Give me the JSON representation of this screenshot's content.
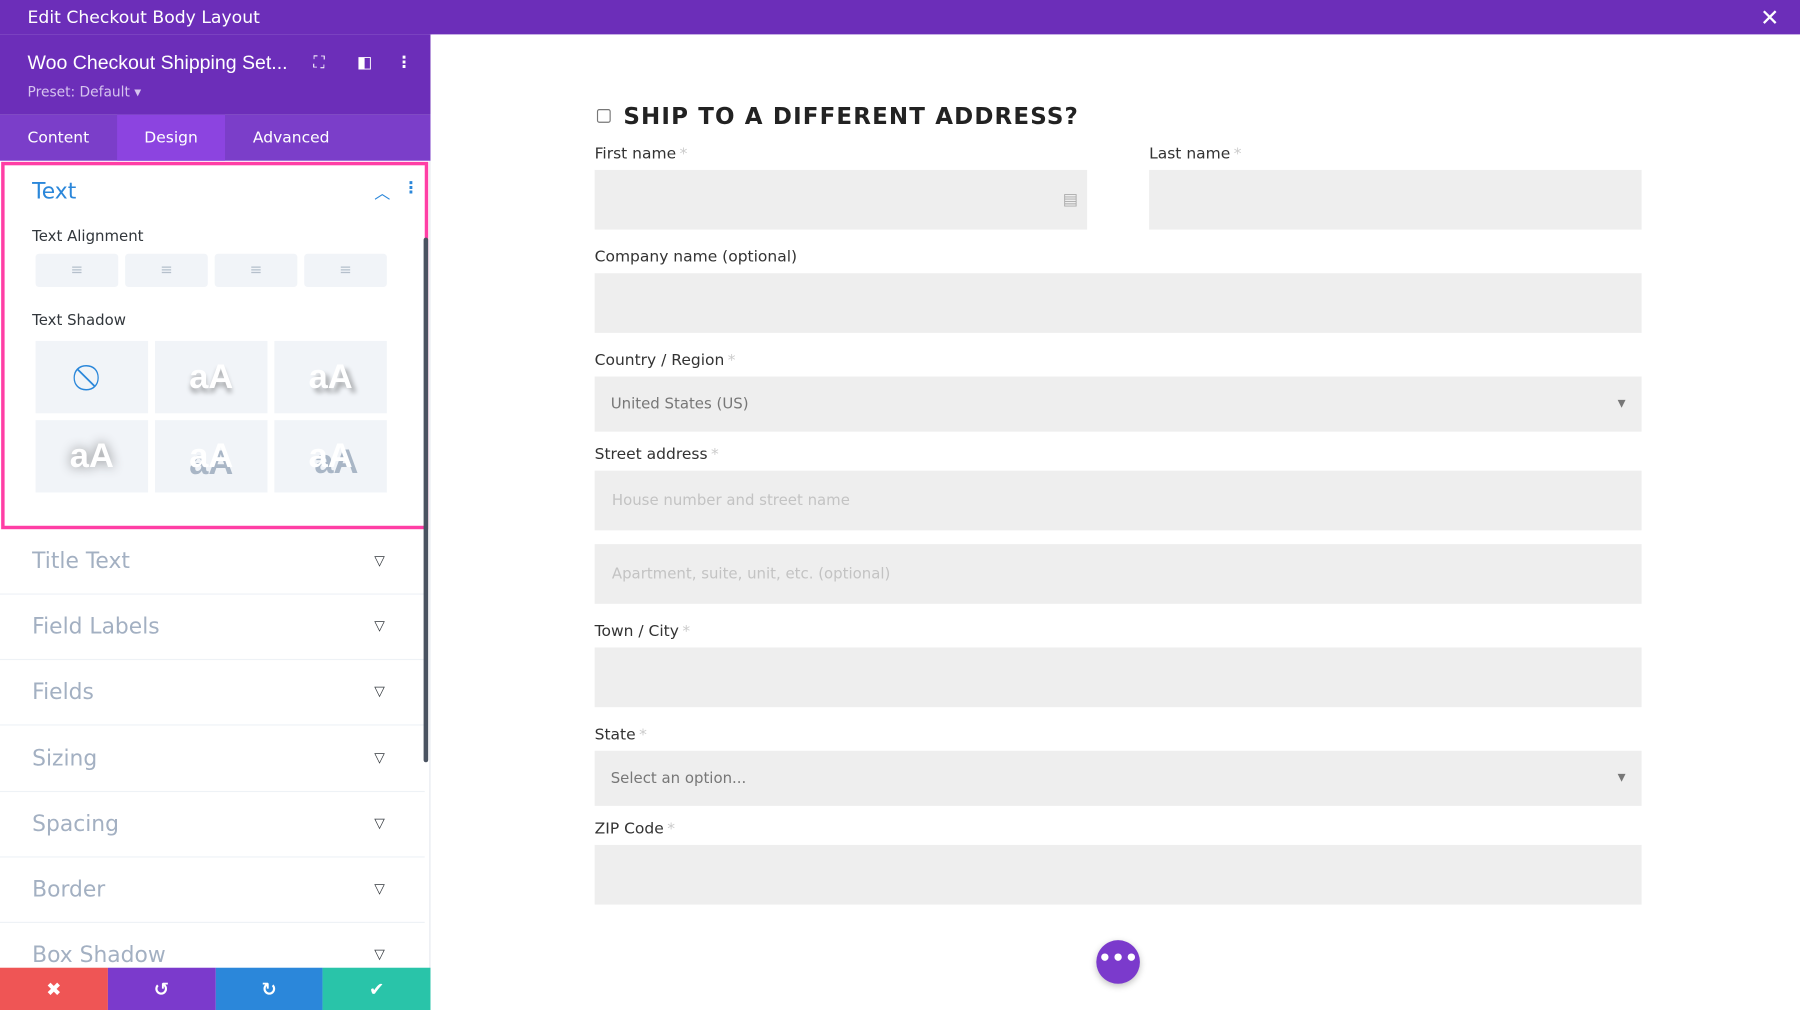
{
  "window": {
    "title": "Edit Checkout Body Layout",
    "close_icon": "close-icon"
  },
  "panel": {
    "module_title": "Woo Checkout Shipping Set...",
    "preset": "Preset: Default",
    "tabs": [
      {
        "label": "Content"
      },
      {
        "label": "Design",
        "active": true
      },
      {
        "label": "Advanced"
      }
    ],
    "text_section": {
      "title": "Text",
      "alignment_label": "Text Alignment",
      "shadow_label": "Text Shadow",
      "shadow_sample": "aA"
    },
    "accordions": [
      {
        "label": "Title Text"
      },
      {
        "label": "Field Labels"
      },
      {
        "label": "Fields"
      },
      {
        "label": "Sizing"
      },
      {
        "label": "Spacing"
      },
      {
        "label": "Border"
      },
      {
        "label": "Box Shadow"
      }
    ],
    "bottom_buttons": {
      "cancel": "✖",
      "undo": "↺",
      "redo": "↻",
      "save": "✔"
    },
    "colors": {
      "purple": "#6c2eb9",
      "highlight": "#ff3ea5",
      "cancel": "#ef5555",
      "undo": "#7b3acc",
      "redo": "#2b87da",
      "save": "#29c4a9"
    }
  },
  "form": {
    "heading": "SHIP TO A DIFFERENT ADDRESS?",
    "required_mark": "*",
    "first_name": {
      "label": "First name"
    },
    "last_name": {
      "label": "Last name"
    },
    "company": {
      "label": "Company name (optional)"
    },
    "country": {
      "label": "Country / Region",
      "value": "United States (US)"
    },
    "street": {
      "label": "Street address",
      "placeholder1": "House number and street name",
      "placeholder2": "Apartment, suite, unit, etc. (optional)"
    },
    "city": {
      "label": "Town / City"
    },
    "state": {
      "label": "State",
      "value": "Select an option..."
    },
    "zip": {
      "label": "ZIP Code"
    }
  },
  "fab": {
    "label": "•••"
  }
}
